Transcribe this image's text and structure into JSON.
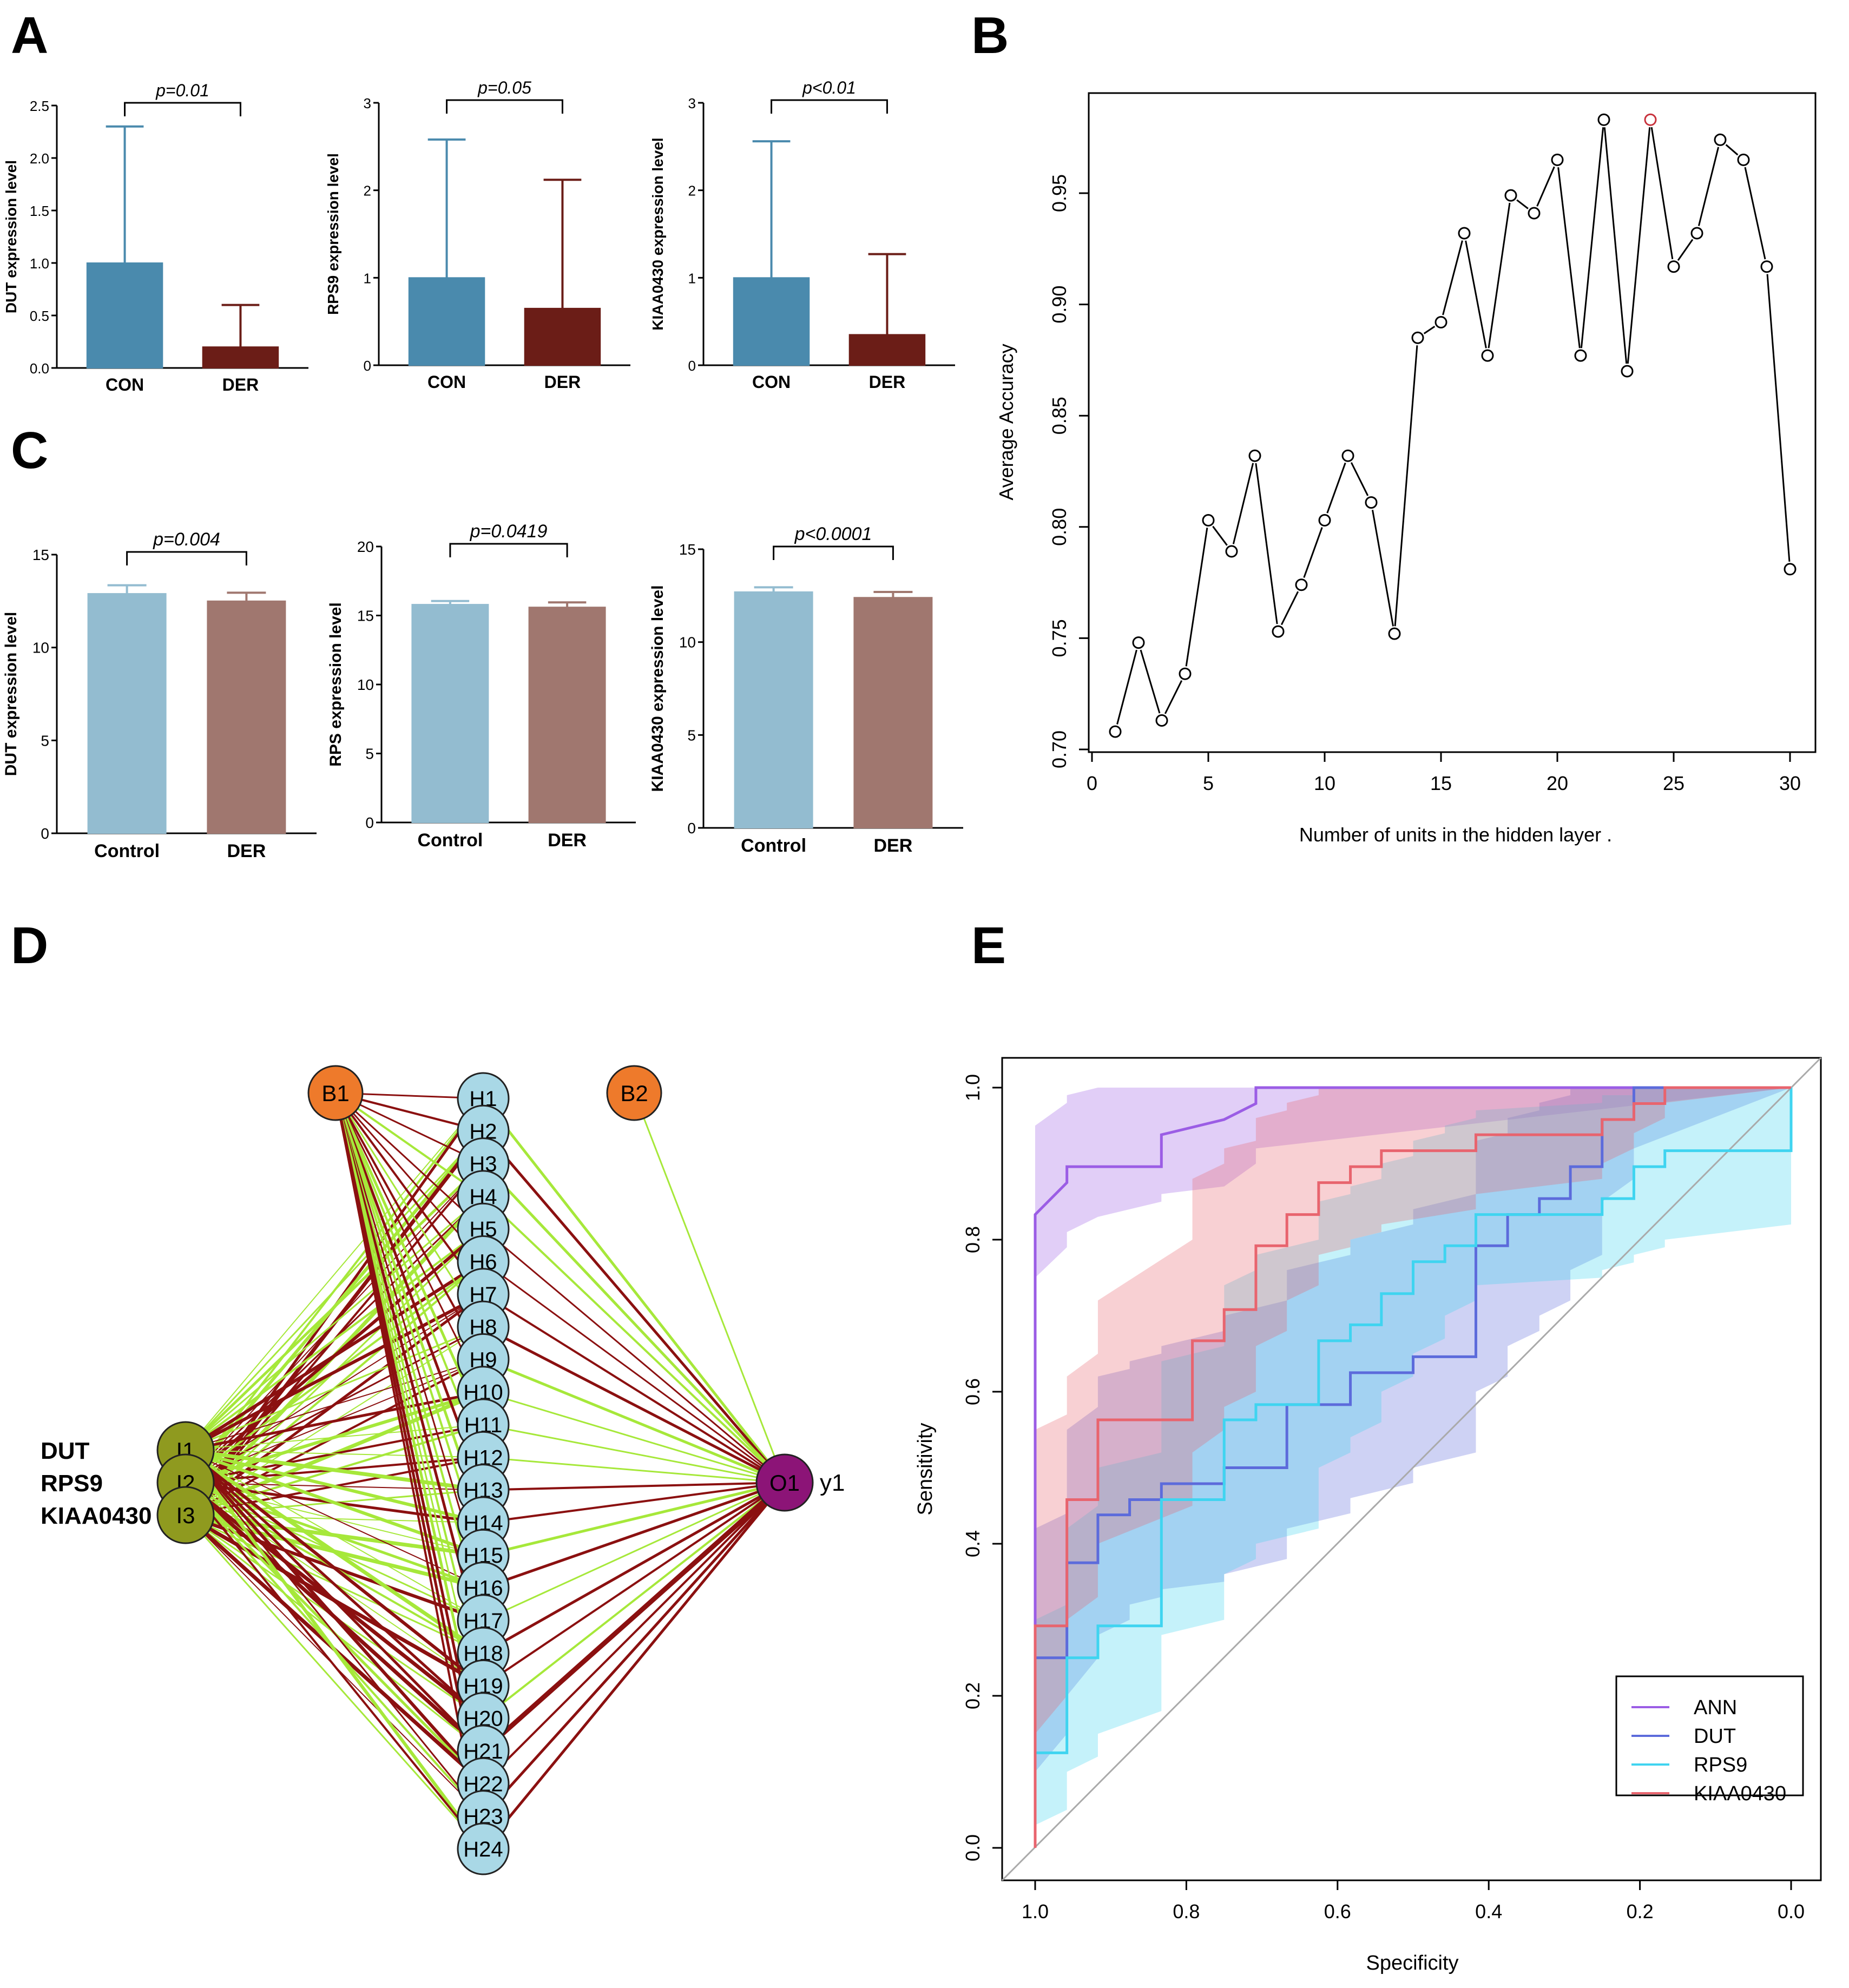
{
  "panel_letters": {
    "A": "A",
    "B": "B",
    "C": "C",
    "D": "D",
    "E": "E"
  },
  "chart_data": [
    {
      "id": "A1",
      "type": "bar",
      "ylabel": "DUT expression level",
      "categories": [
        "CON",
        "DER"
      ],
      "values": [
        1.0,
        0.2
      ],
      "errors": [
        1.3,
        0.4
      ],
      "ylim": [
        0,
        2.5
      ],
      "ticks": [
        0,
        0.5,
        1.0,
        1.5,
        2.0,
        2.5
      ],
      "tick_labels": [
        "0.0",
        "0.5",
        "1.0",
        "1.5",
        "2.0",
        "2.5"
      ],
      "p_label": "p=0.01",
      "colors": [
        "#4a8aad",
        "#6b1d17"
      ]
    },
    {
      "id": "A2",
      "type": "bar",
      "ylabel": "RPS9 expression level",
      "categories": [
        "CON",
        "DER"
      ],
      "values": [
        1.0,
        0.65
      ],
      "errors": [
        1.58,
        1.47
      ],
      "ylim": [
        0,
        3
      ],
      "ticks": [
        0,
        1,
        2,
        3
      ],
      "tick_labels": [
        "0",
        "1",
        "2",
        "3"
      ],
      "p_label": "p=0.05",
      "colors": [
        "#4a8aad",
        "#6b1d17"
      ]
    },
    {
      "id": "A3",
      "type": "bar",
      "ylabel": "KIAA0430 expression level",
      "categories": [
        "CON",
        "DER"
      ],
      "values": [
        1.0,
        0.35
      ],
      "errors": [
        1.56,
        0.92
      ],
      "ylim": [
        0,
        3
      ],
      "ticks": [
        0,
        1,
        2,
        3
      ],
      "tick_labels": [
        "0",
        "1",
        "2",
        "3"
      ],
      "p_label": "p<0.01",
      "colors": [
        "#4a8aad",
        "#6b1d17"
      ]
    },
    {
      "id": "C1",
      "type": "bar",
      "ylabel": "DUT expression level",
      "categories": [
        "Control",
        "DER"
      ],
      "values": [
        12.9,
        12.5
      ],
      "errors": [
        0.45,
        0.45
      ],
      "ylim": [
        0,
        15
      ],
      "ticks": [
        0,
        5,
        10,
        15
      ],
      "tick_labels": [
        "0",
        "5",
        "10",
        "15"
      ],
      "p_label": "p=0.004",
      "colors": [
        "#93bcd0",
        "#a0776f"
      ]
    },
    {
      "id": "C2",
      "type": "bar",
      "ylabel": "RPS expression level",
      "categories": [
        "Control",
        "DER"
      ],
      "values": [
        15.8,
        15.6
      ],
      "errors": [
        0.25,
        0.35
      ],
      "ylim": [
        0,
        20
      ],
      "ticks": [
        0,
        5,
        10,
        15,
        20
      ],
      "tick_labels": [
        "0",
        "5",
        "10",
        "15",
        "20"
      ],
      "p_label": "p=0.0419",
      "colors": [
        "#93bcd0",
        "#a0776f"
      ]
    },
    {
      "id": "C3",
      "type": "bar",
      "ylabel": "KIAA0430 expression level",
      "categories": [
        "Control",
        "DER"
      ],
      "values": [
        12.7,
        12.4
      ],
      "errors": [
        0.25,
        0.3
      ],
      "ylim": [
        0,
        15
      ],
      "ticks": [
        0,
        5,
        10,
        15
      ],
      "tick_labels": [
        "0",
        "5",
        "10",
        "15"
      ],
      "p_label": "p<0.0001",
      "colors": [
        "#93bcd0",
        "#a0776f"
      ]
    },
    {
      "id": "B",
      "type": "line",
      "xlabel": "Number of units in the hidden layer .",
      "ylabel": "Average Accuracy",
      "xlim": [
        0,
        30
      ],
      "ylim": [
        0.7,
        0.985
      ],
      "xticks": [
        0,
        5,
        10,
        15,
        20,
        25,
        30
      ],
      "xtick_labels": [
        "0",
        "5",
        "10",
        "15",
        "20",
        "25",
        "30"
      ],
      "yticks": [
        0.7,
        0.75,
        0.8,
        0.85,
        0.9,
        0.95
      ],
      "ytick_labels": [
        "0.70",
        "0.75",
        "0.80",
        "0.85",
        "0.90",
        "0.95"
      ],
      "x": [
        1,
        2,
        3,
        4,
        5,
        6,
        7,
        8,
        9,
        10,
        11,
        12,
        13,
        14,
        15,
        16,
        17,
        18,
        19,
        20,
        21,
        22,
        23,
        24,
        25,
        26,
        27,
        28,
        29,
        30
      ],
      "y": [
        0.708,
        0.748,
        0.713,
        0.734,
        0.803,
        0.789,
        0.832,
        0.753,
        0.774,
        0.803,
        0.832,
        0.811,
        0.752,
        0.885,
        0.892,
        0.932,
        0.877,
        0.949,
        0.941,
        0.965,
        0.877,
        0.983,
        0.87,
        0.983,
        0.917,
        0.932,
        0.974,
        0.965,
        0.917,
        0.781
      ],
      "highlight_x": 24,
      "highlight_color": "#c8323c"
    },
    {
      "id": "E",
      "type": "line",
      "xlabel": "Specificity",
      "ylabel": "Sensitivity",
      "xlim": [
        1.0,
        0.0
      ],
      "ylim": [
        0,
        1
      ],
      "xticks": [
        1.0,
        0.8,
        0.6,
        0.4,
        0.2,
        0.0
      ],
      "xtick_labels": [
        "1.0",
        "0.8",
        "0.6",
        "0.4",
        "0.2",
        "0.0"
      ],
      "yticks": [
        0,
        0.2,
        0.4,
        0.6,
        0.8,
        1.0
      ],
      "ytick_labels": [
        "0.0",
        "0.2",
        "0.4",
        "0.6",
        "0.8",
        "1.0"
      ],
      "series": [
        {
          "name": "ANN",
          "color": "#9b5de5",
          "spec": [
            1.0,
            1.0,
            0.958,
            0.958,
            0.917,
            0.833,
            0.833,
            0.75,
            0.708,
            0.708,
            0.0
          ],
          "sens": [
            0.0,
            0.833,
            0.875,
            0.896,
            0.896,
            0.896,
            0.938,
            0.958,
            0.979,
            1.0,
            1.0
          ],
          "band_lo": [
            0.0,
            0.75,
            0.79,
            0.81,
            0.83,
            0.85,
            0.86,
            0.87,
            0.9,
            0.92,
            1.0
          ],
          "band_hi": [
            0.0,
            0.95,
            0.98,
            0.99,
            1.0,
            1.0,
            1.0,
            1.0,
            1.0,
            1.0,
            1.0
          ]
        },
        {
          "name": "DUT",
          "color": "#5c6bdb",
          "spec": [
            1.0,
            1.0,
            0.958,
            0.958,
            0.917,
            0.917,
            0.875,
            0.875,
            0.833,
            0.833,
            0.75,
            0.75,
            0.667,
            0.667,
            0.583,
            0.583,
            0.5,
            0.5,
            0.417,
            0.417,
            0.375,
            0.375,
            0.333,
            0.333,
            0.292,
            0.292,
            0.25,
            0.25,
            0.208,
            0.208,
            0.0
          ],
          "sens": [
            0.0,
            0.25,
            0.25,
            0.375,
            0.375,
            0.438,
            0.438,
            0.458,
            0.458,
            0.479,
            0.479,
            0.5,
            0.5,
            0.583,
            0.583,
            0.625,
            0.625,
            0.646,
            0.646,
            0.792,
            0.792,
            0.833,
            0.833,
            0.854,
            0.854,
            0.896,
            0.896,
            0.958,
            0.958,
            1.0,
            1.0
          ],
          "band_lo": [
            0.0,
            0.1,
            0.15,
            0.2,
            0.25,
            0.28,
            0.3,
            0.32,
            0.33,
            0.34,
            0.35,
            0.36,
            0.38,
            0.42,
            0.44,
            0.46,
            0.48,
            0.5,
            0.52,
            0.6,
            0.62,
            0.66,
            0.68,
            0.7,
            0.72,
            0.76,
            0.78,
            0.85,
            0.88,
            0.92,
            1.0
          ],
          "band_hi": [
            0.0,
            0.42,
            0.44,
            0.55,
            0.58,
            0.62,
            0.63,
            0.64,
            0.65,
            0.66,
            0.68,
            0.7,
            0.72,
            0.76,
            0.78,
            0.8,
            0.82,
            0.84,
            0.86,
            0.93,
            0.94,
            0.96,
            0.97,
            0.98,
            0.99,
            1.0,
            1.0,
            1.0,
            1.0,
            1.0,
            1.0
          ]
        },
        {
          "name": "RPS9",
          "color": "#3fd4f0",
          "spec": [
            1.0,
            1.0,
            0.958,
            0.958,
            0.917,
            0.917,
            0.833,
            0.833,
            0.75,
            0.75,
            0.708,
            0.708,
            0.625,
            0.625,
            0.583,
            0.583,
            0.542,
            0.542,
            0.5,
            0.5,
            0.458,
            0.458,
            0.417,
            0.417,
            0.25,
            0.25,
            0.208,
            0.208,
            0.167,
            0.167,
            0.0,
            0.0
          ],
          "sens": [
            0.0,
            0.125,
            0.125,
            0.25,
            0.25,
            0.292,
            0.292,
            0.458,
            0.458,
            0.563,
            0.563,
            0.583,
            0.583,
            0.667,
            0.667,
            0.688,
            0.688,
            0.729,
            0.729,
            0.771,
            0.771,
            0.792,
            0.792,
            0.833,
            0.833,
            0.854,
            0.854,
            0.896,
            0.896,
            0.917,
            0.917,
            1.0
          ],
          "band_lo": [
            0.0,
            0.03,
            0.05,
            0.1,
            0.12,
            0.15,
            0.18,
            0.28,
            0.3,
            0.36,
            0.38,
            0.4,
            0.42,
            0.5,
            0.52,
            0.54,
            0.56,
            0.6,
            0.62,
            0.65,
            0.67,
            0.7,
            0.72,
            0.74,
            0.75,
            0.76,
            0.77,
            0.78,
            0.79,
            0.8,
            0.82,
            0.82
          ],
          "band_hi": [
            0.0,
            0.3,
            0.32,
            0.42,
            0.45,
            0.5,
            0.52,
            0.64,
            0.66,
            0.74,
            0.76,
            0.78,
            0.8,
            0.85,
            0.86,
            0.87,
            0.88,
            0.9,
            0.91,
            0.93,
            0.94,
            0.95,
            0.96,
            0.97,
            0.98,
            0.99,
            0.99,
            1.0,
            1.0,
            1.0,
            1.0,
            1.0
          ]
        },
        {
          "name": "KIAA0430",
          "color": "#e8646e",
          "spec": [
            1.0,
            1.0,
            0.958,
            0.958,
            0.917,
            0.917,
            0.792,
            0.792,
            0.75,
            0.75,
            0.708,
            0.708,
            0.667,
            0.667,
            0.625,
            0.625,
            0.583,
            0.583,
            0.542,
            0.542,
            0.417,
            0.417,
            0.25,
            0.25,
            0.208,
            0.208,
            0.167,
            0.167,
            0.0
          ],
          "sens": [
            0.0,
            0.292,
            0.292,
            0.458,
            0.458,
            0.563,
            0.563,
            0.667,
            0.667,
            0.708,
            0.708,
            0.792,
            0.792,
            0.833,
            0.833,
            0.875,
            0.875,
            0.896,
            0.896,
            0.917,
            0.917,
            0.938,
            0.938,
            0.958,
            0.958,
            0.979,
            0.979,
            1.0,
            1.0
          ],
          "band_lo": [
            0.0,
            0.15,
            0.2,
            0.3,
            0.33,
            0.4,
            0.45,
            0.52,
            0.55,
            0.58,
            0.6,
            0.66,
            0.68,
            0.72,
            0.74,
            0.78,
            0.79,
            0.8,
            0.81,
            0.82,
            0.84,
            0.86,
            0.88,
            0.9,
            0.92,
            0.94,
            0.96,
            0.98,
            1.0
          ],
          "band_hi": [
            0.0,
            0.55,
            0.57,
            0.62,
            0.65,
            0.72,
            0.8,
            0.88,
            0.9,
            0.92,
            0.93,
            0.96,
            0.97,
            0.98,
            0.99,
            1.0,
            1.0,
            1.0,
            1.0,
            1.0,
            1.0,
            1.0,
            1.0,
            1.0,
            1.0,
            1.0,
            1.0,
            1.0,
            1.0
          ]
        }
      ],
      "legend": [
        "ANN",
        "DUT",
        "RPS9",
        "KIAA0430"
      ]
    }
  ],
  "network": {
    "inputs": [
      "I1",
      "I2",
      "I3"
    ],
    "input_labels": [
      "DUT",
      "RPS9",
      "KIAA0430"
    ],
    "hidden": [
      "H1",
      "H2",
      "H3",
      "H4",
      "H5",
      "H6",
      "H7",
      "H8",
      "H9",
      "H10",
      "H11",
      "H12",
      "H13",
      "H14",
      "H15",
      "H16",
      "H17",
      "H18",
      "H19",
      "H20",
      "H21",
      "H22",
      "H23",
      "H24"
    ],
    "bias": [
      "B1",
      "B2"
    ],
    "output": "O1",
    "output_label": "y1",
    "colors": {
      "input": "#8f9a1f",
      "hidden": "#a9d8e6",
      "bias": "#ee7a2b",
      "output": "#8c1477",
      "pos_edge": "#a6e83a",
      "neg_edge": "#8b1010"
    }
  }
}
